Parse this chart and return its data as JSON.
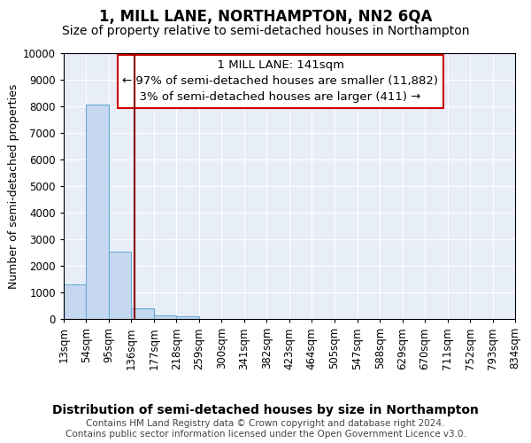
{
  "title": "1, MILL LANE, NORTHAMPTON, NN2 6QA",
  "subtitle": "Size of property relative to semi-detached houses in Northampton",
  "xlabel": "Distribution of semi-detached houses by size in Northampton",
  "ylabel": "Number of semi-detached properties",
  "footer_line1": "Contains HM Land Registry data © Crown copyright and database right 2024.",
  "footer_line2": "Contains public sector information licensed under the Open Government Licence v3.0.",
  "property_label": "1 MILL LANE: 141sqm",
  "smaller_label": "← 97% of semi-detached houses are smaller (11,882)",
  "larger_label": "3% of semi-detached houses are larger (411) →",
  "property_size": 141,
  "bin_edges": [
    13,
    54,
    95,
    136,
    177,
    218,
    259,
    300,
    341,
    382,
    423,
    464,
    505,
    547,
    588,
    629,
    670,
    711,
    752,
    793,
    834
  ],
  "bar_heights": [
    1300,
    8050,
    2530,
    400,
    150,
    100,
    0,
    0,
    0,
    0,
    0,
    0,
    0,
    0,
    0,
    0,
    0,
    0,
    0,
    0
  ],
  "bar_color": "#c5d8f0",
  "bar_edge_color": "#6aaad4",
  "vline_color": "#8b0000",
  "annotation_box_facecolor": "#ffffff",
  "annotation_box_edgecolor": "#cc0000",
  "plot_bg_color": "#e8eef8",
  "ylim": [
    0,
    10000
  ],
  "yticks": [
    0,
    1000,
    2000,
    3000,
    4000,
    5000,
    6000,
    7000,
    8000,
    9000,
    10000
  ],
  "title_fontsize": 12,
  "subtitle_fontsize": 10,
  "xlabel_fontsize": 10,
  "ylabel_fontsize": 9,
  "tick_fontsize": 8.5,
  "annotation_fontsize": 9.5,
  "footer_fontsize": 7.5
}
